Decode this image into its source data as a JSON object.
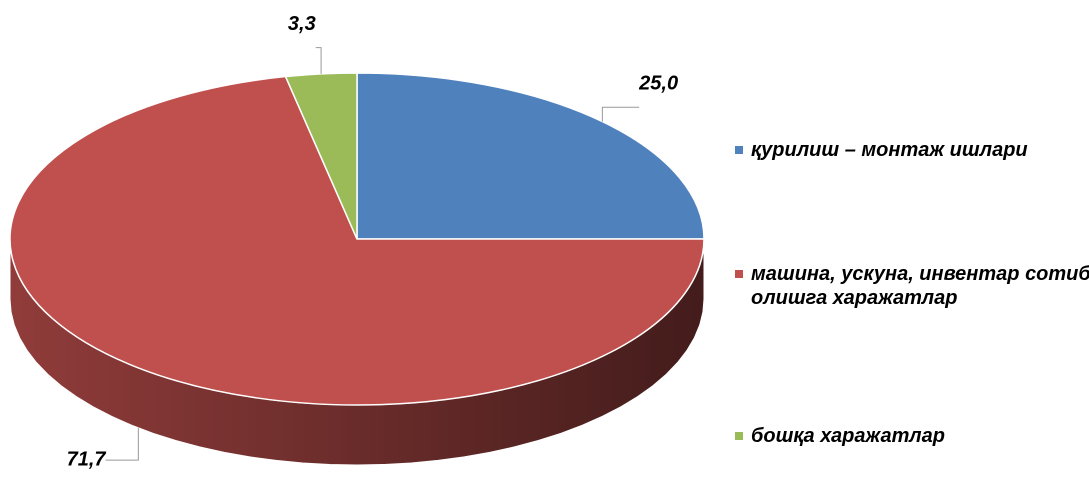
{
  "chart_data": {
    "type": "pie3d",
    "categories": [
      "қурилиш – монтаж ишлари",
      "машина, ускуна, инвентар сотиб олишга харажатлар",
      "бошқа харажатлар"
    ],
    "values": [
      25.0,
      71.7,
      3.3
    ],
    "value_labels": [
      "25,0",
      "71,7",
      "3,3"
    ],
    "colors": [
      "#4f81bd",
      "#c0504d",
      "#9bbb59"
    ],
    "legend": "right"
  }
}
